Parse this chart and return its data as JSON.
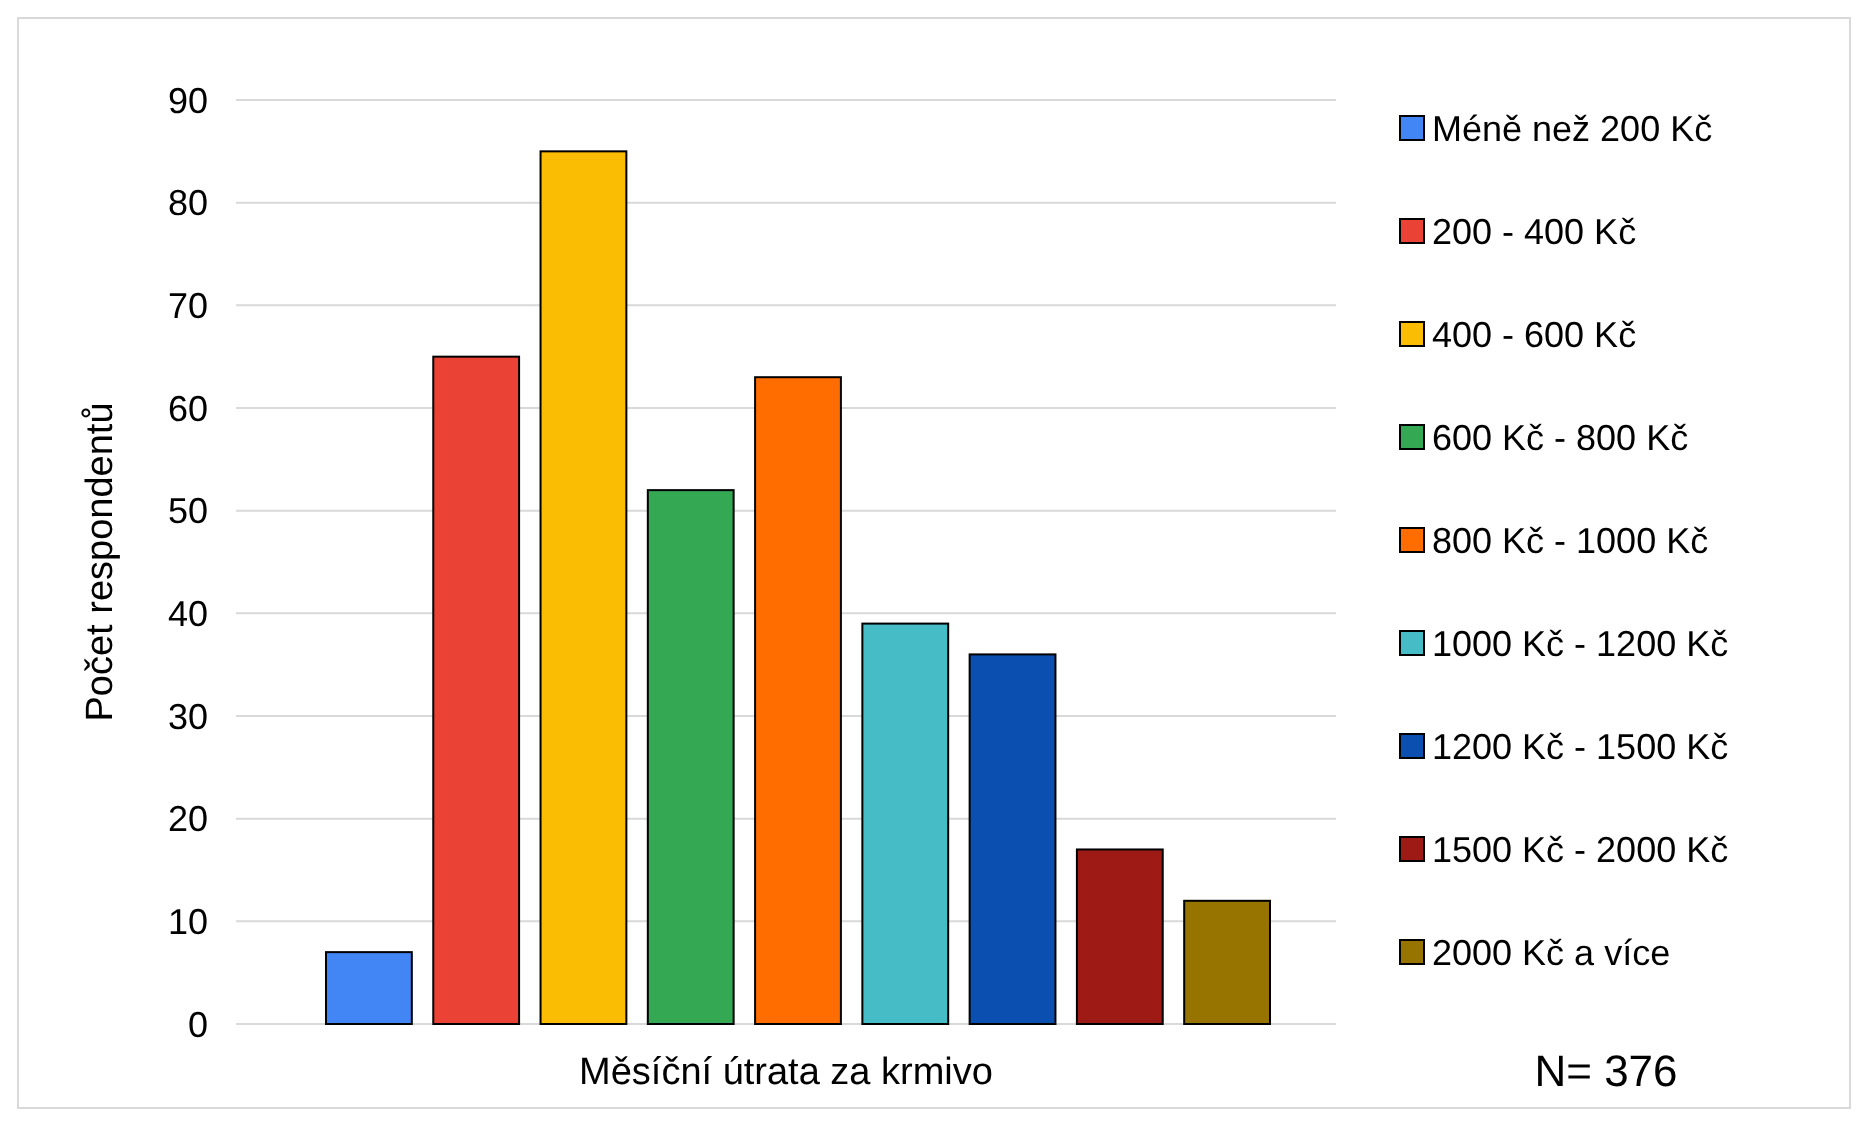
{
  "chart_data": {
    "type": "bar",
    "xlabel": "Měsíční útrata za krmivo",
    "ylabel": "Počet respondentů",
    "categories": [
      null
    ],
    "series": [
      {
        "name": "Méně než 200 Kč",
        "color": "#4285f4",
        "values": [
          7
        ]
      },
      {
        "name": "200 - 400 Kč",
        "color": "#ea4335",
        "values": [
          65
        ]
      },
      {
        "name": "400 - 600 Kč",
        "color": "#fbbc04",
        "values": [
          85
        ]
      },
      {
        "name": "600 Kč - 800 Kč",
        "color": "#34a853",
        "values": [
          52
        ]
      },
      {
        "name": "800 Kč - 1000 Kč",
        "color": "#ff6d01",
        "values": [
          63
        ]
      },
      {
        "name": "1000 Kč - 1200 Kč",
        "color": "#46bdc6",
        "values": [
          39
        ]
      },
      {
        "name": "1200 Kč - 1500 Kč",
        "color": "#0b4fb0",
        "values": [
          36
        ]
      },
      {
        "name": "1500 Kč - 2000 Kč",
        "color": "#9e1b15",
        "values": [
          17
        ]
      },
      {
        "name": "2000 Kč a více",
        "color": "#977300",
        "values": [
          12
        ]
      }
    ],
    "ylim": [
      0,
      90
    ],
    "yticks": [
      0,
      10,
      20,
      30,
      40,
      50,
      60,
      70,
      80,
      90
    ],
    "grid": "y",
    "legend": "right",
    "annotations": [
      "N= 376"
    ]
  }
}
